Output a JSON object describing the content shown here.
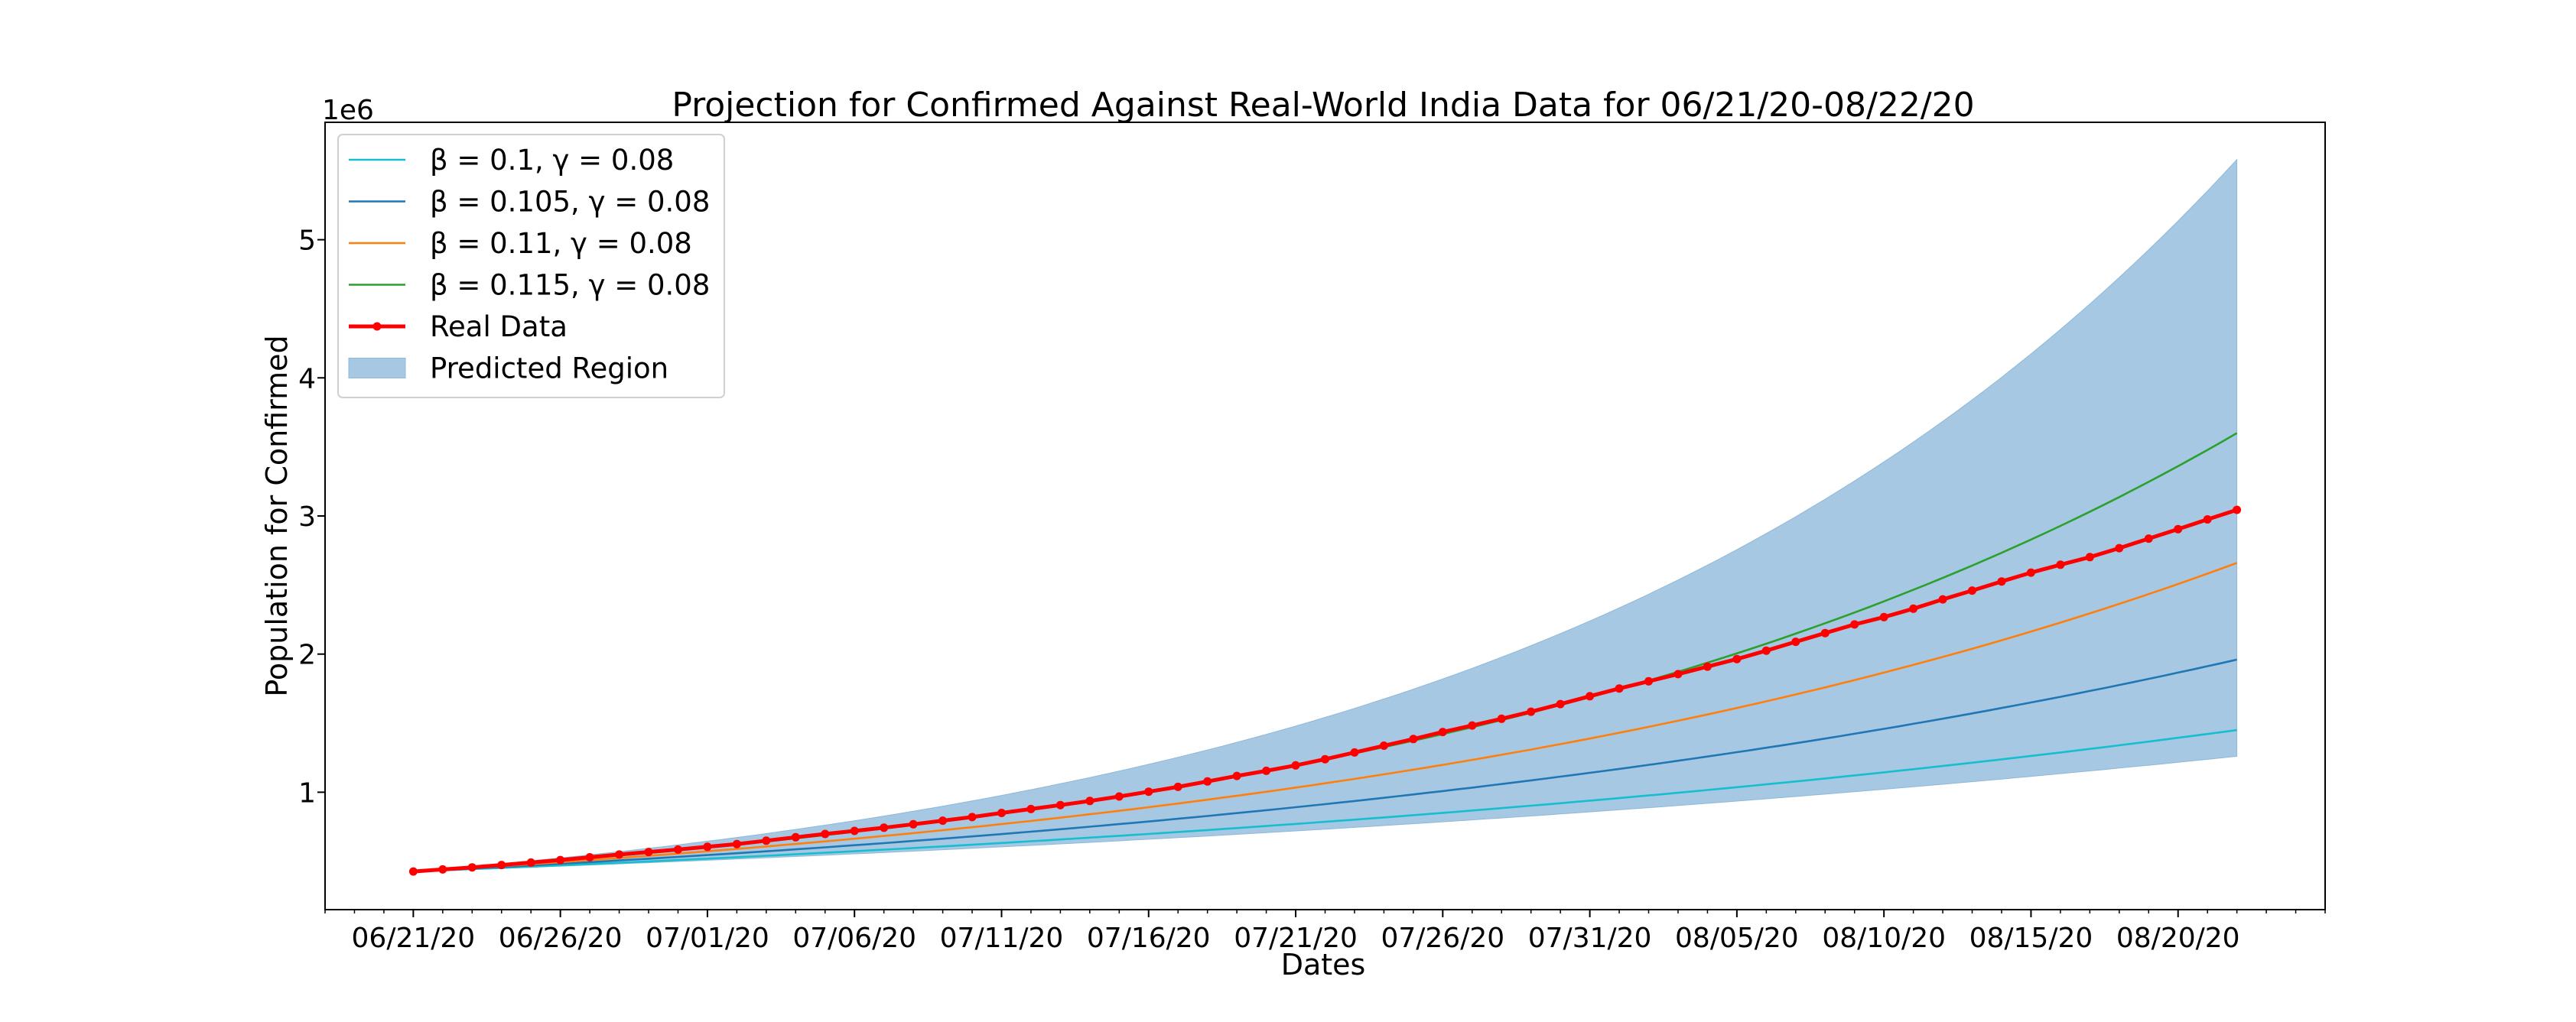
{
  "chart_data": {
    "type": "line",
    "title": "Projection for Confirmed Against Real-World India Data for 06/21/20-08/22/20",
    "xlabel": "Dates",
    "ylabel": "Population for Confirmed",
    "y_offset_label": "1e6",
    "x_tick_labels": [
      "06/21/20",
      "06/26/20",
      "07/01/20",
      "07/06/20",
      "07/11/20",
      "07/16/20",
      "07/21/20",
      "07/26/20",
      "07/31/20",
      "08/05/20",
      "08/10/20",
      "08/15/20",
      "08/20/20"
    ],
    "x_tick_day_index": [
      0,
      5,
      10,
      15,
      20,
      25,
      30,
      35,
      40,
      45,
      50,
      55,
      60
    ],
    "x_range_days": [
      -3,
      65
    ],
    "y_ticks": [
      1,
      2,
      3,
      4,
      5
    ],
    "y_tick_labels": [
      "1",
      "2",
      "3",
      "4",
      "5"
    ],
    "ylim": [
      0.15,
      5.85
    ],
    "grid": false,
    "legend_position": "top-left",
    "colors": {
      "beta_0_1": "#17becf",
      "beta_0_105": "#1f77b4",
      "beta_0_11": "#ff7f0e",
      "beta_0_115": "#2ca02c",
      "real": "#ff0000",
      "region": "#a6c8e2"
    },
    "legend": [
      {
        "key": "beta_0_1",
        "label": "β = 0.1, γ = 0.08",
        "kind": "line"
      },
      {
        "key": "beta_0_105",
        "label": "β = 0.105, γ = 0.08",
        "kind": "line"
      },
      {
        "key": "beta_0_11",
        "label": "β = 0.11, γ = 0.08",
        "kind": "line"
      },
      {
        "key": "beta_0_115",
        "label": "β = 0.115, γ = 0.08",
        "kind": "line"
      },
      {
        "key": "real",
        "label": "Real Data",
        "kind": "marker-line"
      },
      {
        "key": "region",
        "label": "Predicted Region",
        "kind": "patch"
      }
    ],
    "model_series": [
      {
        "key": "beta_0_1",
        "start_day": 0,
        "end_day": 62,
        "start_value": 0.426,
        "end_value": 1.45
      },
      {
        "key": "beta_0_105",
        "start_day": 0,
        "end_day": 62,
        "start_value": 0.426,
        "end_value": 1.96
      },
      {
        "key": "beta_0_11",
        "start_day": 0,
        "end_day": 62,
        "start_value": 0.426,
        "end_value": 2.66
      },
      {
        "key": "beta_0_115",
        "start_day": 0,
        "end_day": 62,
        "start_value": 0.426,
        "end_value": 3.6
      }
    ],
    "predicted_region": {
      "start_day": 0,
      "end_day": 62,
      "start_value": 0.426,
      "lower_end": 1.26,
      "upper_end": 5.58
    },
    "real_data": {
      "start_day": 0,
      "values": [
        0.426,
        0.441,
        0.456,
        0.473,
        0.491,
        0.509,
        0.529,
        0.549,
        0.567,
        0.585,
        0.605,
        0.625,
        0.649,
        0.674,
        0.698,
        0.72,
        0.743,
        0.768,
        0.794,
        0.82,
        0.85,
        0.878,
        0.907,
        0.937,
        0.969,
        1.004,
        1.039,
        1.078,
        1.118,
        1.155,
        1.194,
        1.239,
        1.288,
        1.337,
        1.385,
        1.436,
        1.483,
        1.532,
        1.583,
        1.638,
        1.695,
        1.751,
        1.803,
        1.855,
        1.909,
        1.964,
        2.025,
        2.089,
        2.152,
        2.215,
        2.268,
        2.329,
        2.396,
        2.46,
        2.526,
        2.59,
        2.647,
        2.702,
        2.767,
        2.836,
        2.905,
        2.975,
        3.044
      ]
    }
  }
}
